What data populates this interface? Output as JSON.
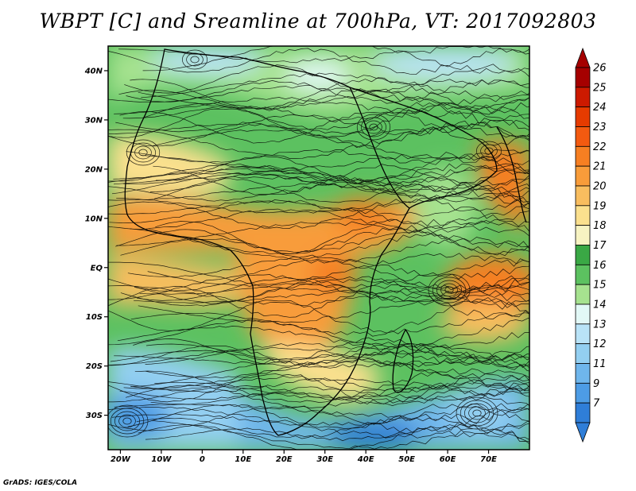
{
  "title": "WBPT [C] and Sreamline at 700hPa, VT: 2017092803",
  "credit": "GrADS: IGES/COLA",
  "map": {
    "lon_range": [
      -23,
      80
    ],
    "lat_range": [
      -37,
      45
    ],
    "lon_ticks": [
      {
        "value": -20,
        "label": "20W"
      },
      {
        "value": -10,
        "label": "10W"
      },
      {
        "value": 0,
        "label": "0"
      },
      {
        "value": 10,
        "label": "10E"
      },
      {
        "value": 20,
        "label": "20E"
      },
      {
        "value": 30,
        "label": "30E"
      },
      {
        "value": 40,
        "label": "40E"
      },
      {
        "value": 50,
        "label": "50E"
      },
      {
        "value": 60,
        "label": "60E"
      },
      {
        "value": 70,
        "label": "70E"
      }
    ],
    "lat_ticks": [
      {
        "value": 40,
        "label": "40N"
      },
      {
        "value": 30,
        "label": "30N"
      },
      {
        "value": 20,
        "label": "20N"
      },
      {
        "value": 10,
        "label": "10N"
      },
      {
        "value": 0,
        "label": "EQ"
      },
      {
        "value": -10,
        "label": "10S"
      },
      {
        "value": -20,
        "label": "20S"
      },
      {
        "value": -30,
        "label": "30S"
      }
    ]
  },
  "colorbar": {
    "levels": [
      {
        "label": "26",
        "color": "#a50000"
      },
      {
        "label": "25",
        "color": "#cc1a00"
      },
      {
        "label": "24",
        "color": "#e63b00"
      },
      {
        "label": "23",
        "color": "#f35a10"
      },
      {
        "label": "22",
        "color": "#f67f22"
      },
      {
        "label": "21",
        "color": "#f89c3a"
      },
      {
        "label": "20",
        "color": "#f8bd5f"
      },
      {
        "label": "19",
        "color": "#fbe08e"
      },
      {
        "label": "18",
        "color": "#f7f3c2"
      },
      {
        "label": "17",
        "color": "#3aa845"
      },
      {
        "label": "16",
        "color": "#5cc160"
      },
      {
        "label": "15",
        "color": "#a6e28f"
      },
      {
        "label": "14",
        "color": "#e2f8f6"
      },
      {
        "label": "13",
        "color": "#b9e3f7"
      },
      {
        "label": "12",
        "color": "#93cff1"
      },
      {
        "label": "11",
        "color": "#6fb6ec"
      },
      {
        "label": "9",
        "color": "#4d9ce5"
      },
      {
        "label": "7",
        "color": "#2f7ed8"
      }
    ],
    "top_arrow_color": "#a50000",
    "bottom_arrow_color": "#2f7ed8"
  }
}
